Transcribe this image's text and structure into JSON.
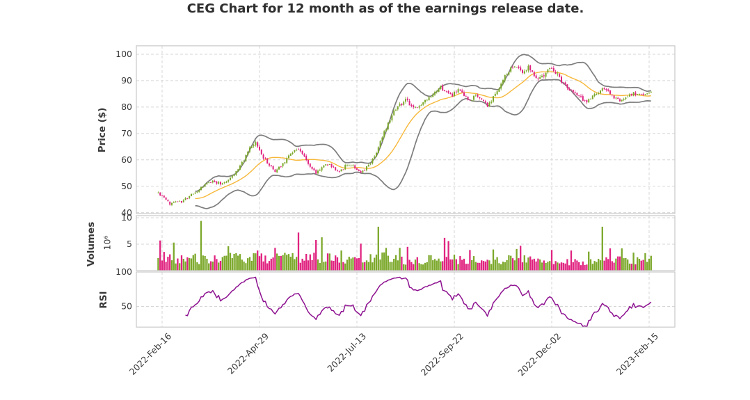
{
  "title": "CEG Chart for 12 month as of the earnings release date.",
  "axes": {
    "price_label": "Price ($)",
    "volume_label": "Volumes",
    "volume_scale": "10⁶",
    "rsi_label": "RSI"
  },
  "colors": {
    "up": "#7CA82B",
    "down": "#E02380",
    "sma": "#F7B83A",
    "band": "#7D7D7D",
    "rsi": "#8D1190",
    "grid": "#D6D6D6",
    "spine": "#C9C9C9",
    "tick_text": "#3A3A3A",
    "title_text": "#2F2F2F",
    "background": "#FFFFFF"
  },
  "chart_data": [
    {
      "type": "candlestick",
      "panel": "price",
      "ylabel": "Price ($)",
      "yticks": [
        100,
        90,
        80,
        70,
        60,
        50,
        40
      ],
      "ylim": [
        39.6,
        103.2
      ],
      "grid": true,
      "days_total": 254,
      "x_tick_days": [
        2,
        52,
        102,
        152,
        202,
        252
      ],
      "x_tick_labels": [
        "2022-Feb-16",
        "2022-Apr-29",
        "2022-Jul-13",
        "2022-Sep-22",
        "2022-Dec-02",
        "2023-Feb-15"
      ],
      "close_keyframes": [
        [
          0,
          47.5
        ],
        [
          3,
          45.5
        ],
        [
          6,
          43.2
        ],
        [
          9,
          44.6
        ],
        [
          12,
          44.0
        ],
        [
          16,
          46.2
        ],
        [
          20,
          48.0
        ],
        [
          24,
          50.5
        ],
        [
          28,
          52.0
        ],
        [
          32,
          51.0
        ],
        [
          36,
          52.5
        ],
        [
          40,
          55.5
        ],
        [
          44,
          60.0
        ],
        [
          47,
          64.0
        ],
        [
          50,
          66.3
        ],
        [
          52,
          63.5
        ],
        [
          55,
          60.0
        ],
        [
          58,
          57.2
        ],
        [
          60,
          55.5
        ],
        [
          63,
          58.0
        ],
        [
          66,
          60.5
        ],
        [
          69,
          63.3
        ],
        [
          72,
          64.3
        ],
        [
          75,
          61.0
        ],
        [
          78,
          57.5
        ],
        [
          81,
          55.0
        ],
        [
          84,
          57.2
        ],
        [
          87,
          58.5
        ],
        [
          90,
          57.0
        ],
        [
          93,
          55.5
        ],
        [
          96,
          57.5
        ],
        [
          99,
          58.2
        ],
        [
          102,
          56.5
        ],
        [
          104,
          54.6
        ],
        [
          106,
          56.2
        ],
        [
          109,
          59.0
        ],
        [
          112,
          63.0
        ],
        [
          115,
          68.5
        ],
        [
          118,
          74.0
        ],
        [
          121,
          79.0
        ],
        [
          124,
          81.0
        ],
        [
          127,
          82.5
        ],
        [
          130,
          80.5
        ],
        [
          133,
          79.5
        ],
        [
          136,
          81.5
        ],
        [
          139,
          83.0
        ],
        [
          142,
          85.0
        ],
        [
          145,
          87.5
        ],
        [
          148,
          85.5
        ],
        [
          151,
          84.5
        ],
        [
          154,
          86.5
        ],
        [
          157,
          84.0
        ],
        [
          160,
          82.0
        ],
        [
          163,
          84.5
        ],
        [
          166,
          83.0
        ],
        [
          169,
          80.5
        ],
        [
          172,
          83.5
        ],
        [
          175,
          87.5
        ],
        [
          178,
          91.5
        ],
        [
          181,
          94.5
        ],
        [
          184,
          96.0
        ],
        [
          187,
          93.2
        ],
        [
          190,
          95.5
        ],
        [
          193,
          92.5
        ],
        [
          196,
          90.5
        ],
        [
          199,
          93.5
        ],
        [
          202,
          95.0
        ],
        [
          205,
          92.0
        ],
        [
          208,
          89.0
        ],
        [
          211,
          87.0
        ],
        [
          214,
          85.0
        ],
        [
          217,
          83.5
        ],
        [
          220,
          82.0
        ],
        [
          223,
          84.0
        ],
        [
          226,
          85.5
        ],
        [
          229,
          87.0
        ],
        [
          232,
          85.0
        ],
        [
          235,
          83.0
        ],
        [
          238,
          82.3
        ],
        [
          241,
          84.0
        ],
        [
          244,
          85.2
        ],
        [
          247,
          84.6
        ],
        [
          250,
          85.0
        ],
        [
          253,
          85.6
        ]
      ],
      "volatility_keyframes": [
        [
          0,
          0.8
        ],
        [
          20,
          0.7
        ],
        [
          45,
          1.1
        ],
        [
          60,
          1.2
        ],
        [
          90,
          0.9
        ],
        [
          110,
          1.0
        ],
        [
          125,
          1.3
        ],
        [
          150,
          1.2
        ],
        [
          170,
          1.1
        ],
        [
          185,
          1.5
        ],
        [
          205,
          1.4
        ],
        [
          225,
          1.2
        ],
        [
          240,
          0.9
        ],
        [
          253,
          0.8
        ]
      ],
      "overlays": {
        "sma_window": 20,
        "bollinger": {
          "window": 20,
          "mult": 2
        }
      }
    },
    {
      "type": "bar",
      "panel": "volume",
      "ylabel": "Volumes",
      "unit_exponent": "10⁶",
      "yticks": [
        10,
        5
      ],
      "ylim": [
        0,
        10.4
      ],
      "grid": true,
      "base_keyframes": [
        [
          0,
          2.8
        ],
        [
          10,
          2.3
        ],
        [
          25,
          2.2
        ],
        [
          40,
          2.4
        ],
        [
          60,
          2.2
        ],
        [
          80,
          2.7
        ],
        [
          95,
          1.9
        ],
        [
          105,
          2.0
        ],
        [
          115,
          2.5
        ],
        [
          130,
          1.8
        ],
        [
          145,
          2.3
        ],
        [
          160,
          1.9
        ],
        [
          175,
          2.1
        ],
        [
          190,
          2.1
        ],
        [
          205,
          1.8
        ],
        [
          220,
          1.6
        ],
        [
          232,
          2.0
        ],
        [
          245,
          1.8
        ],
        [
          253,
          2.1
        ]
      ],
      "spikes": {
        "1": 5.7,
        "8": 5.3,
        "22": 9.4,
        "36": 4.6,
        "51": 3.8,
        "60": 4.3,
        "72": 7.2,
        "81": 5.8,
        "84": 6.3,
        "94": 3.8,
        "104": 5.1,
        "113": 8.3,
        "117": 4.3,
        "124": 4.3,
        "128": 4.5,
        "147": 6.2,
        "149": 5.6,
        "160": 3.9,
        "172": 4.0,
        "184": 4.1,
        "186": 4.7,
        "202": 3.9,
        "212": 3.8,
        "221": 3.6,
        "228": 8.3,
        "232": 4.2,
        "238": 4.2,
        "244": 3.4,
        "250": 3.3
      }
    },
    {
      "type": "line",
      "panel": "rsi",
      "ylabel": "RSI",
      "indicator": "RSI",
      "window": 14,
      "yticks": [
        100,
        50
      ],
      "ylim": [
        20,
        100
      ],
      "grid": true
    }
  ]
}
